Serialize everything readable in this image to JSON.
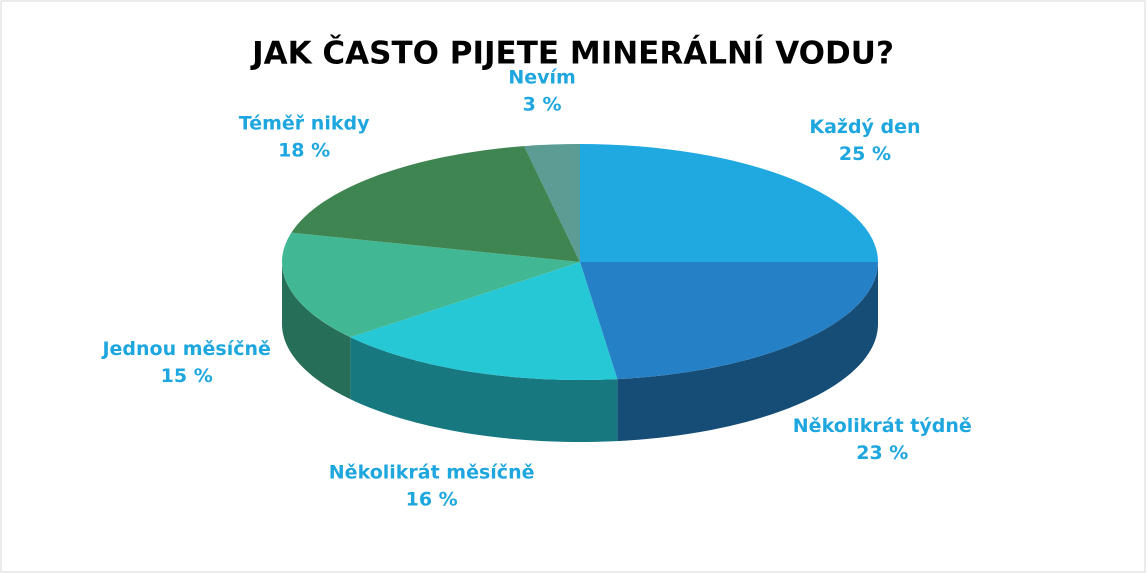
{
  "chart_data": {
    "type": "pie",
    "title": "JAK ČASTO PIJETE MINERÁLNÍ VODU?",
    "categories": [
      "Každý den",
      "Několikrát týdně",
      "Několikrát měsíčně",
      "Jednou měsíčně",
      "Téměř nikdy",
      "Nevím"
    ],
    "values": [
      25,
      23,
      16,
      15,
      18,
      3
    ],
    "value_labels": [
      "25 %",
      "23 %",
      "16 %",
      "15 %",
      "18 %",
      "3 %"
    ],
    "colors": [
      "#1fa9e0",
      "#2580c6",
      "#27c8d6",
      "#41b893",
      "#3f8552",
      "#5b9c94"
    ]
  }
}
